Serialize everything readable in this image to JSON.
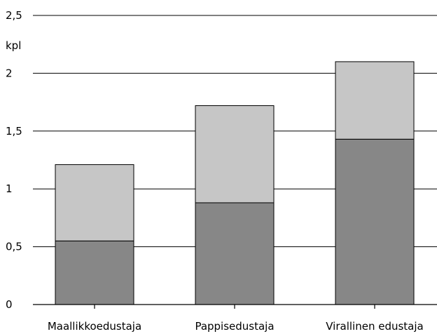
{
  "chart_data": {
    "type": "bar",
    "stacked": true,
    "categories": [
      "Maallikkoedustaja",
      "Pappisedustaja",
      "Virallinen edustaja"
    ],
    "series": [
      {
        "values": [
          0.55,
          0.88,
          1.43
        ],
        "color": "#878787"
      },
      {
        "values": [
          0.66,
          0.84,
          0.67
        ],
        "color": "#c6c6c6"
      }
    ],
    "ylim": [
      0,
      2.5
    ],
    "yticks": [
      0,
      0.5,
      1,
      1.5,
      2,
      2.5
    ],
    "ytick_labels": [
      "0",
      "0,5",
      "1",
      "1,5",
      "2",
      "2,5"
    ],
    "ylabel": "kpl",
    "grid": true,
    "legend": "none"
  }
}
